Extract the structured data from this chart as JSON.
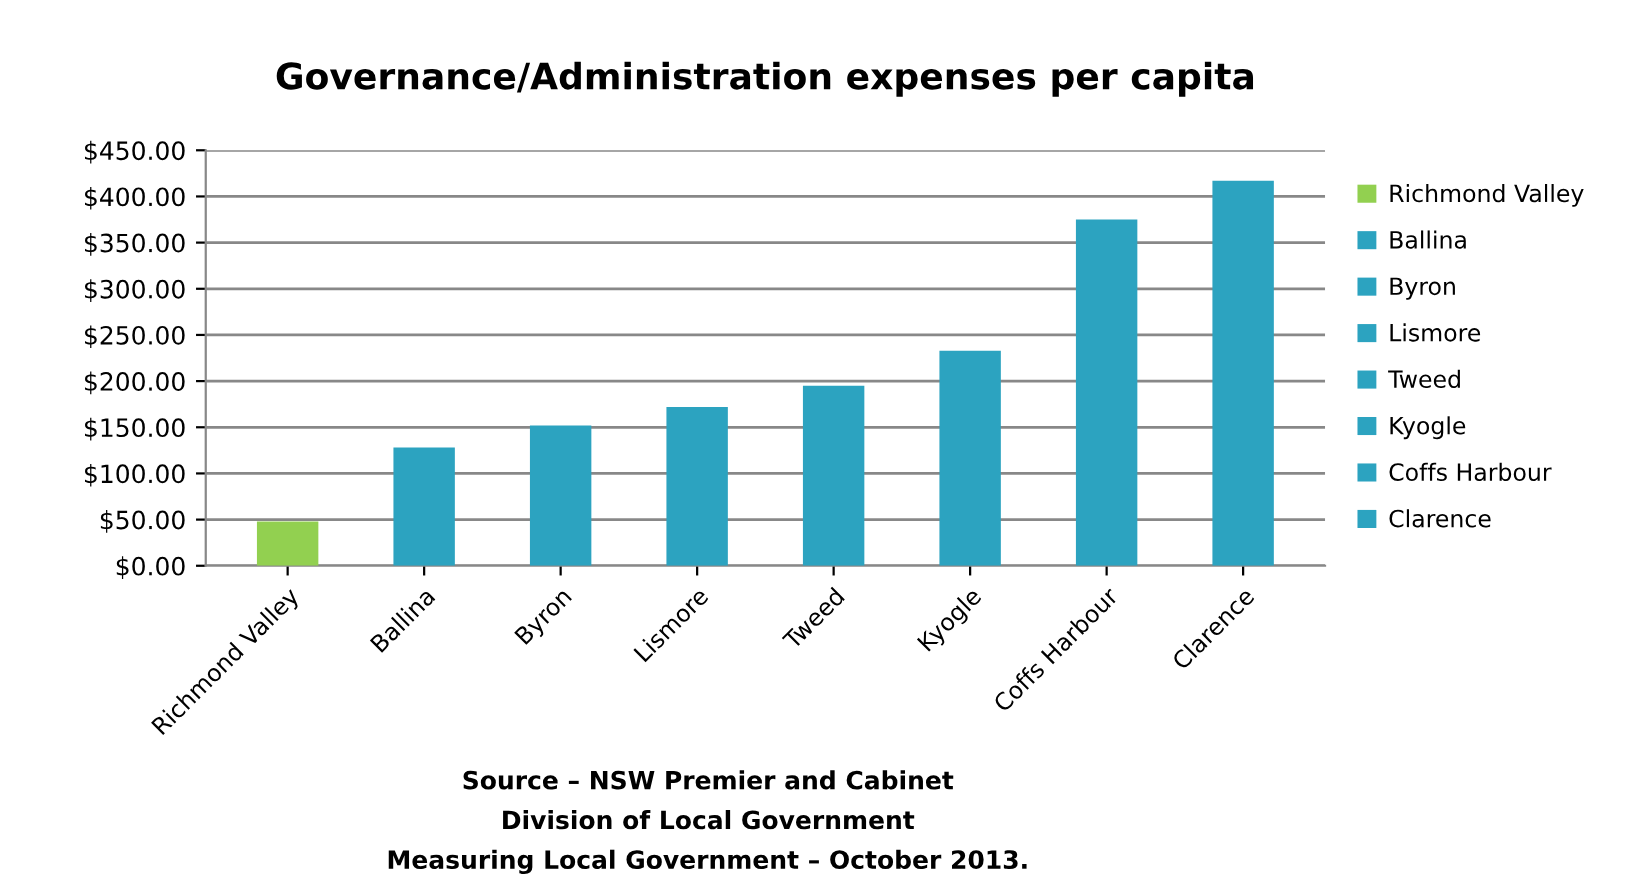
{
  "chart_data": {
    "type": "bar",
    "title": "Governance/Administration expenses per capita",
    "categories": [
      "Richmond Valley",
      "Ballina",
      "Byron",
      "Lismore",
      "Tweed",
      "Kyogle",
      "Coffs Harbour",
      "Clarence"
    ],
    "series": [
      {
        "name": "Richmond Valley",
        "color": "#92d050",
        "values": [
          48,
          null,
          null,
          null,
          null,
          null,
          null,
          null
        ]
      },
      {
        "name": "Ballina",
        "color": "#2ca3c0",
        "values": [
          null,
          128,
          null,
          null,
          null,
          null,
          null,
          null
        ]
      },
      {
        "name": "Byron",
        "color": "#2ca3c0",
        "values": [
          null,
          null,
          152,
          null,
          null,
          null,
          null,
          null
        ]
      },
      {
        "name": "Lismore",
        "color": "#2ca3c0",
        "values": [
          null,
          null,
          null,
          172,
          null,
          null,
          null,
          null
        ]
      },
      {
        "name": "Tweed",
        "color": "#2ca3c0",
        "values": [
          null,
          null,
          null,
          null,
          195,
          null,
          null,
          null
        ]
      },
      {
        "name": "Kyogle",
        "color": "#2ca3c0",
        "values": [
          null,
          null,
          null,
          null,
          null,
          233,
          null,
          null
        ]
      },
      {
        "name": "Coffs Harbour",
        "color": "#2ca3c0",
        "values": [
          null,
          null,
          null,
          null,
          null,
          null,
          375,
          null
        ]
      },
      {
        "name": "Clarence",
        "color": "#2ca3c0",
        "values": [
          null,
          null,
          null,
          null,
          null,
          null,
          null,
          417
        ]
      }
    ],
    "ylim": [
      0,
      450
    ],
    "yticks": [
      {
        "value": 0,
        "label": "$0.00"
      },
      {
        "value": 50,
        "label": "$50.00"
      },
      {
        "value": 100,
        "label": "$100.00"
      },
      {
        "value": 150,
        "label": "$150.00"
      },
      {
        "value": 200,
        "label": "$200.00"
      },
      {
        "value": 250,
        "label": "$250.00"
      },
      {
        "value": 300,
        "label": "$300.00"
      },
      {
        "value": 350,
        "label": "$350.00"
      },
      {
        "value": 400,
        "label": "$400.00"
      },
      {
        "value": 450,
        "label": "$450.00"
      }
    ],
    "grid": "y",
    "legend": "right",
    "annotations": [
      "Source – NSW Premier and Cabinet",
      "Division of Local Government",
      "Measuring Local Government – October 2013."
    ]
  }
}
